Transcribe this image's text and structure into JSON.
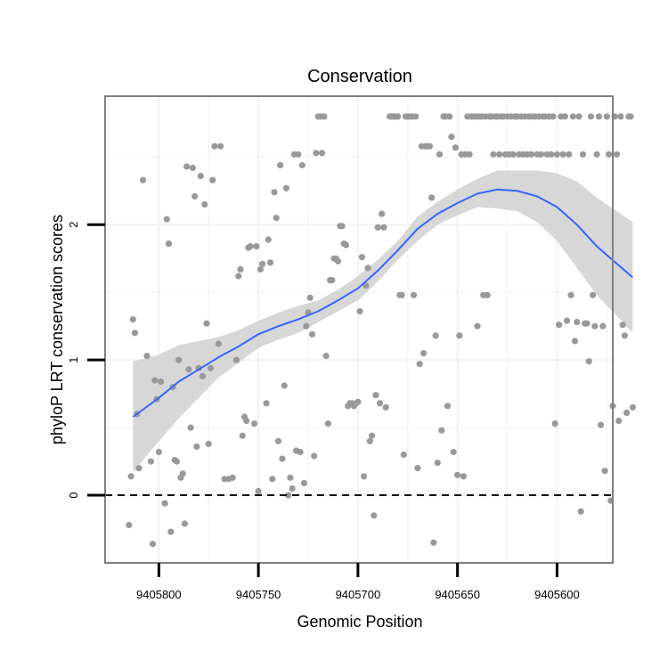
{
  "chart_data": {
    "type": "scatter",
    "title": "Conservation",
    "xlabel": "Genomic Position",
    "ylabel": "phyloP LRT conservation scores",
    "x_reversed": true,
    "xlim": [
      9405827,
      9405572
    ],
    "ylim": [
      -0.5,
      2.95
    ],
    "x_ticks": [
      9405800,
      9405750,
      9405700,
      9405650,
      9405600
    ],
    "x_tick_labels": [
      "9405800",
      "9405750",
      "9405700",
      "9405650",
      "9405600"
    ],
    "y_ticks": [
      0,
      1,
      2
    ],
    "y_tick_labels": [
      "0",
      "1",
      "2"
    ],
    "reference_line": {
      "y": 0,
      "style": "dashed"
    },
    "colors": {
      "points": "#999999",
      "smooth_line": "#3366ff",
      "confidence_band": "#d3d3d3",
      "panel_border": "#808080",
      "grid": "#f2f2f2"
    },
    "series": [
      {
        "name": "phyloP scores",
        "type": "scatter",
        "points": [
          [
            9405813,
            1.3
          ],
          [
            9405812,
            1.2
          ],
          [
            9405811,
            0.6
          ],
          [
            9405814,
            0.14
          ],
          [
            9405815,
            -0.22
          ],
          [
            9405810,
            0.2
          ],
          [
            9405808,
            2.33
          ],
          [
            9405806,
            1.03
          ],
          [
            9405804,
            0.25
          ],
          [
            9405803,
            -0.36
          ],
          [
            9405802,
            0.85
          ],
          [
            9405801,
            0.71
          ],
          [
            9405800,
            0.32
          ],
          [
            9405799,
            0.84
          ],
          [
            9405797,
            -0.06
          ],
          [
            9405796,
            2.04
          ],
          [
            9405795,
            1.86
          ],
          [
            9405794,
            -0.27
          ],
          [
            9405793,
            0.8
          ],
          [
            9405792,
            0.26
          ],
          [
            9405791,
            0.25
          ],
          [
            9405790,
            1.0
          ],
          [
            9405789,
            0.13
          ],
          [
            9405788,
            0.16
          ],
          [
            9405787,
            -0.21
          ],
          [
            9405786,
            2.43
          ],
          [
            9405785,
            0.93
          ],
          [
            9405784,
            0.5
          ],
          [
            9405783,
            2.42
          ],
          [
            9405782,
            2.21
          ],
          [
            9405781,
            0.36
          ],
          [
            9405780,
            0.94
          ],
          [
            9405779,
            2.36
          ],
          [
            9405778,
            0.88
          ],
          [
            9405777,
            2.15
          ],
          [
            9405776,
            1.27
          ],
          [
            9405775,
            0.38
          ],
          [
            9405774,
            0.94
          ],
          [
            9405773,
            2.33
          ],
          [
            9405772,
            2.58
          ],
          [
            9405770,
            1.12
          ],
          [
            9405769,
            2.58
          ],
          [
            9405767,
            0.12
          ],
          [
            9405765,
            0.12
          ],
          [
            9405763,
            0.13
          ],
          [
            9405761,
            1.0
          ],
          [
            9405760,
            1.62
          ],
          [
            9405759,
            1.67
          ],
          [
            9405758,
            0.44
          ],
          [
            9405757,
            0.58
          ],
          [
            9405756,
            0.55
          ],
          [
            9405755,
            1.83
          ],
          [
            9405754,
            1.84
          ],
          [
            9405752,
            0.53
          ],
          [
            9405751,
            1.84
          ],
          [
            9405750,
            0.03
          ],
          [
            9405749,
            1.67
          ],
          [
            9405748,
            1.71
          ],
          [
            9405746,
            0.68
          ],
          [
            9405745,
            1.89
          ],
          [
            9405744,
            1.72
          ],
          [
            9405743,
            0.12
          ],
          [
            9405742,
            2.24
          ],
          [
            9405741,
            2.05
          ],
          [
            9405740,
            0.4
          ],
          [
            9405739,
            2.44
          ],
          [
            9405738,
            0.27
          ],
          [
            9405737,
            0.81
          ],
          [
            9405736,
            2.27
          ],
          [
            9405735,
            0.0
          ],
          [
            9405734,
            0.13
          ],
          [
            9405733,
            0.05
          ],
          [
            9405732,
            2.52
          ],
          [
            9405731,
            0.33
          ],
          [
            9405730,
            2.52
          ],
          [
            9405729,
            0.32
          ],
          [
            9405728,
            2.44
          ],
          [
            9405727,
            0.09
          ],
          [
            9405726,
            1.25
          ],
          [
            9405725,
            1.35
          ],
          [
            9405724,
            1.46
          ],
          [
            9405723,
            1.19
          ],
          [
            9405722,
            0.29
          ],
          [
            9405721,
            2.53
          ],
          [
            9405720,
            2.8
          ],
          [
            9405719,
            2.8
          ],
          [
            9405718,
            2.53
          ],
          [
            9405717,
            2.8
          ],
          [
            9405716,
            1.03
          ],
          [
            9405715,
            0.53
          ],
          [
            9405714,
            1.59
          ],
          [
            9405713,
            1.59
          ],
          [
            9405712,
            1.75
          ],
          [
            9405711,
            1.75
          ],
          [
            9405710,
            1.73
          ],
          [
            9405709,
            1.99
          ],
          [
            9405708,
            1.99
          ],
          [
            9405707,
            1.86
          ],
          [
            9405706,
            1.85
          ],
          [
            9405705,
            0.66
          ],
          [
            9405704,
            0.68
          ],
          [
            9405703,
            0.68
          ],
          [
            9405702,
            0.66
          ],
          [
            9405701,
            0.68
          ],
          [
            9405700,
            0.69
          ],
          [
            9405699,
            1.36
          ],
          [
            9405698,
            1.76
          ],
          [
            9405697,
            0.14
          ],
          [
            9405696,
            1.55
          ],
          [
            9405695,
            1.68
          ],
          [
            9405694,
            0.4
          ],
          [
            9405693,
            0.44
          ],
          [
            9405692,
            -0.15
          ],
          [
            9405691,
            0.74
          ],
          [
            9405690,
            1.98
          ],
          [
            9405689,
            0.68
          ],
          [
            9405688,
            2.08
          ],
          [
            9405687,
            1.98
          ],
          [
            9405686,
            0.65
          ],
          [
            9405684,
            2.8
          ],
          [
            9405683,
            2.8
          ],
          [
            9405682,
            2.8
          ],
          [
            9405681,
            2.8
          ],
          [
            9405680,
            2.8
          ],
          [
            9405679,
            1.48
          ],
          [
            9405678,
            1.48
          ],
          [
            9405677,
            0.3
          ],
          [
            9405676,
            2.8
          ],
          [
            9405675,
            2.8
          ],
          [
            9405674,
            2.8
          ],
          [
            9405673,
            2.8
          ],
          [
            9405672,
            1.48
          ],
          [
            9405671,
            2.8
          ],
          [
            9405670,
            0.2
          ],
          [
            9405669,
            0.97
          ],
          [
            9405668,
            2.58
          ],
          [
            9405667,
            1.05
          ],
          [
            9405666,
            2.58
          ],
          [
            9405665,
            2.58
          ],
          [
            9405664,
            2.58
          ],
          [
            9405663,
            2.2
          ],
          [
            9405662,
            -0.35
          ],
          [
            9405661,
            1.18
          ],
          [
            9405660,
            0.24
          ],
          [
            9405659,
            2.52
          ],
          [
            9405658,
            0.48
          ],
          [
            9405657,
            2.8
          ],
          [
            9405656,
            2.8
          ],
          [
            9405655,
            0.66
          ],
          [
            9405654,
            2.8
          ],
          [
            9405653,
            2.65
          ],
          [
            9405652,
            0.32
          ],
          [
            9405651,
            2.57
          ],
          [
            9405650,
            0.15
          ],
          [
            9405649,
            1.18
          ],
          [
            9405648,
            2.52
          ],
          [
            9405647,
            0.14
          ],
          [
            9405646,
            2.52
          ],
          [
            9405645,
            2.8
          ],
          [
            9405644,
            2.52
          ],
          [
            9405643,
            2.8
          ],
          [
            9405642,
            2.8
          ],
          [
            9405641,
            2.8
          ],
          [
            9405640,
            1.25
          ],
          [
            9405639,
            2.8
          ],
          [
            9405638,
            2.8
          ],
          [
            9405637,
            1.48
          ],
          [
            9405636,
            2.8
          ],
          [
            9405635,
            1.48
          ],
          [
            9405634,
            2.8
          ],
          [
            9405633,
            2.8
          ],
          [
            9405632,
            2.52
          ],
          [
            9405631,
            2.8
          ],
          [
            9405630,
            2.8
          ],
          [
            9405629,
            2.52
          ],
          [
            9405628,
            2.8
          ],
          [
            9405627,
            2.8
          ],
          [
            9405626,
            2.52
          ],
          [
            9405625,
            2.8
          ],
          [
            9405624,
            2.52
          ],
          [
            9405623,
            2.8
          ],
          [
            9405622,
            2.52
          ],
          [
            9405621,
            2.8
          ],
          [
            9405620,
            2.8
          ],
          [
            9405619,
            2.52
          ],
          [
            9405618,
            2.8
          ],
          [
            9405617,
            2.52
          ],
          [
            9405616,
            2.8
          ],
          [
            9405615,
            2.52
          ],
          [
            9405614,
            2.8
          ],
          [
            9405613,
            2.52
          ],
          [
            9405612,
            2.8
          ],
          [
            9405611,
            2.8
          ],
          [
            9405610,
            2.52
          ],
          [
            9405609,
            2.8
          ],
          [
            9405608,
            2.52
          ],
          [
            9405607,
            2.8
          ],
          [
            9405606,
            2.8
          ],
          [
            9405605,
            2.52
          ],
          [
            9405604,
            2.8
          ],
          [
            9405603,
            2.52
          ],
          [
            9405602,
            2.8
          ],
          [
            9405601,
            0.53
          ],
          [
            9405600,
            2.52
          ],
          [
            9405599,
            1.26
          ],
          [
            9405598,
            2.8
          ],
          [
            9405597,
            2.52
          ],
          [
            9405596,
            2.8
          ],
          [
            9405595,
            1.29
          ],
          [
            9405594,
            2.52
          ],
          [
            9405593,
            1.48
          ],
          [
            9405592,
            2.8
          ],
          [
            9405591,
            1.14
          ],
          [
            9405590,
            1.28
          ],
          [
            9405589,
            2.8
          ],
          [
            9405588,
            -0.12
          ],
          [
            9405587,
            2.52
          ],
          [
            9405586,
            1.27
          ],
          [
            9405585,
            1.27
          ],
          [
            9405584,
            0.99
          ],
          [
            9405583,
            2.8
          ],
          [
            9405582,
            1.48
          ],
          [
            9405581,
            1.25
          ],
          [
            9405580,
            2.52
          ],
          [
            9405579,
            2.8
          ],
          [
            9405578,
            0.52
          ],
          [
            9405577,
            1.25
          ],
          [
            9405576,
            0.18
          ],
          [
            9405575,
            2.8
          ],
          [
            9405574,
            2.52
          ],
          [
            9405573,
            -0.04
          ],
          [
            9405572,
            0.66
          ],
          [
            9405571,
            2.8
          ],
          [
            9405570,
            2.52
          ],
          [
            9405569,
            0.55
          ],
          [
            9405568,
            2.8
          ],
          [
            9405567,
            1.26
          ],
          [
            9405566,
            1.18
          ],
          [
            9405565,
            0.61
          ],
          [
            9405564,
            2.8
          ],
          [
            9405563,
            2.8
          ],
          [
            9405562,
            0.65
          ]
        ]
      },
      {
        "name": "smooth fit",
        "type": "line",
        "x": [
          9405813,
          9405800,
          9405790,
          9405780,
          9405770,
          9405760,
          9405750,
          9405740,
          9405730,
          9405720,
          9405710,
          9405700,
          9405690,
          9405680,
          9405670,
          9405660,
          9405650,
          9405640,
          9405630,
          9405620,
          9405610,
          9405600,
          9405590,
          9405580,
          9405562
        ],
        "y": [
          0.58,
          0.72,
          0.84,
          0.93,
          1.02,
          1.1,
          1.19,
          1.25,
          1.3,
          1.36,
          1.44,
          1.53,
          1.66,
          1.81,
          1.97,
          2.08,
          2.16,
          2.23,
          2.26,
          2.25,
          2.21,
          2.13,
          2.0,
          1.84,
          1.61
        ],
        "band_lower": [
          0.17,
          0.4,
          0.57,
          0.72,
          0.87,
          0.98,
          1.09,
          1.15,
          1.2,
          1.28,
          1.36,
          1.44,
          1.58,
          1.74,
          1.88,
          2.0,
          2.07,
          2.13,
          2.12,
          2.1,
          2.02,
          1.88,
          1.68,
          1.48,
          1.2
        ],
        "band_upper": [
          0.99,
          1.04,
          1.11,
          1.14,
          1.17,
          1.22,
          1.29,
          1.35,
          1.4,
          1.44,
          1.52,
          1.62,
          1.74,
          1.88,
          2.06,
          2.17,
          2.26,
          2.34,
          2.4,
          2.4,
          2.4,
          2.38,
          2.32,
          2.2,
          2.02
        ]
      }
    ]
  }
}
